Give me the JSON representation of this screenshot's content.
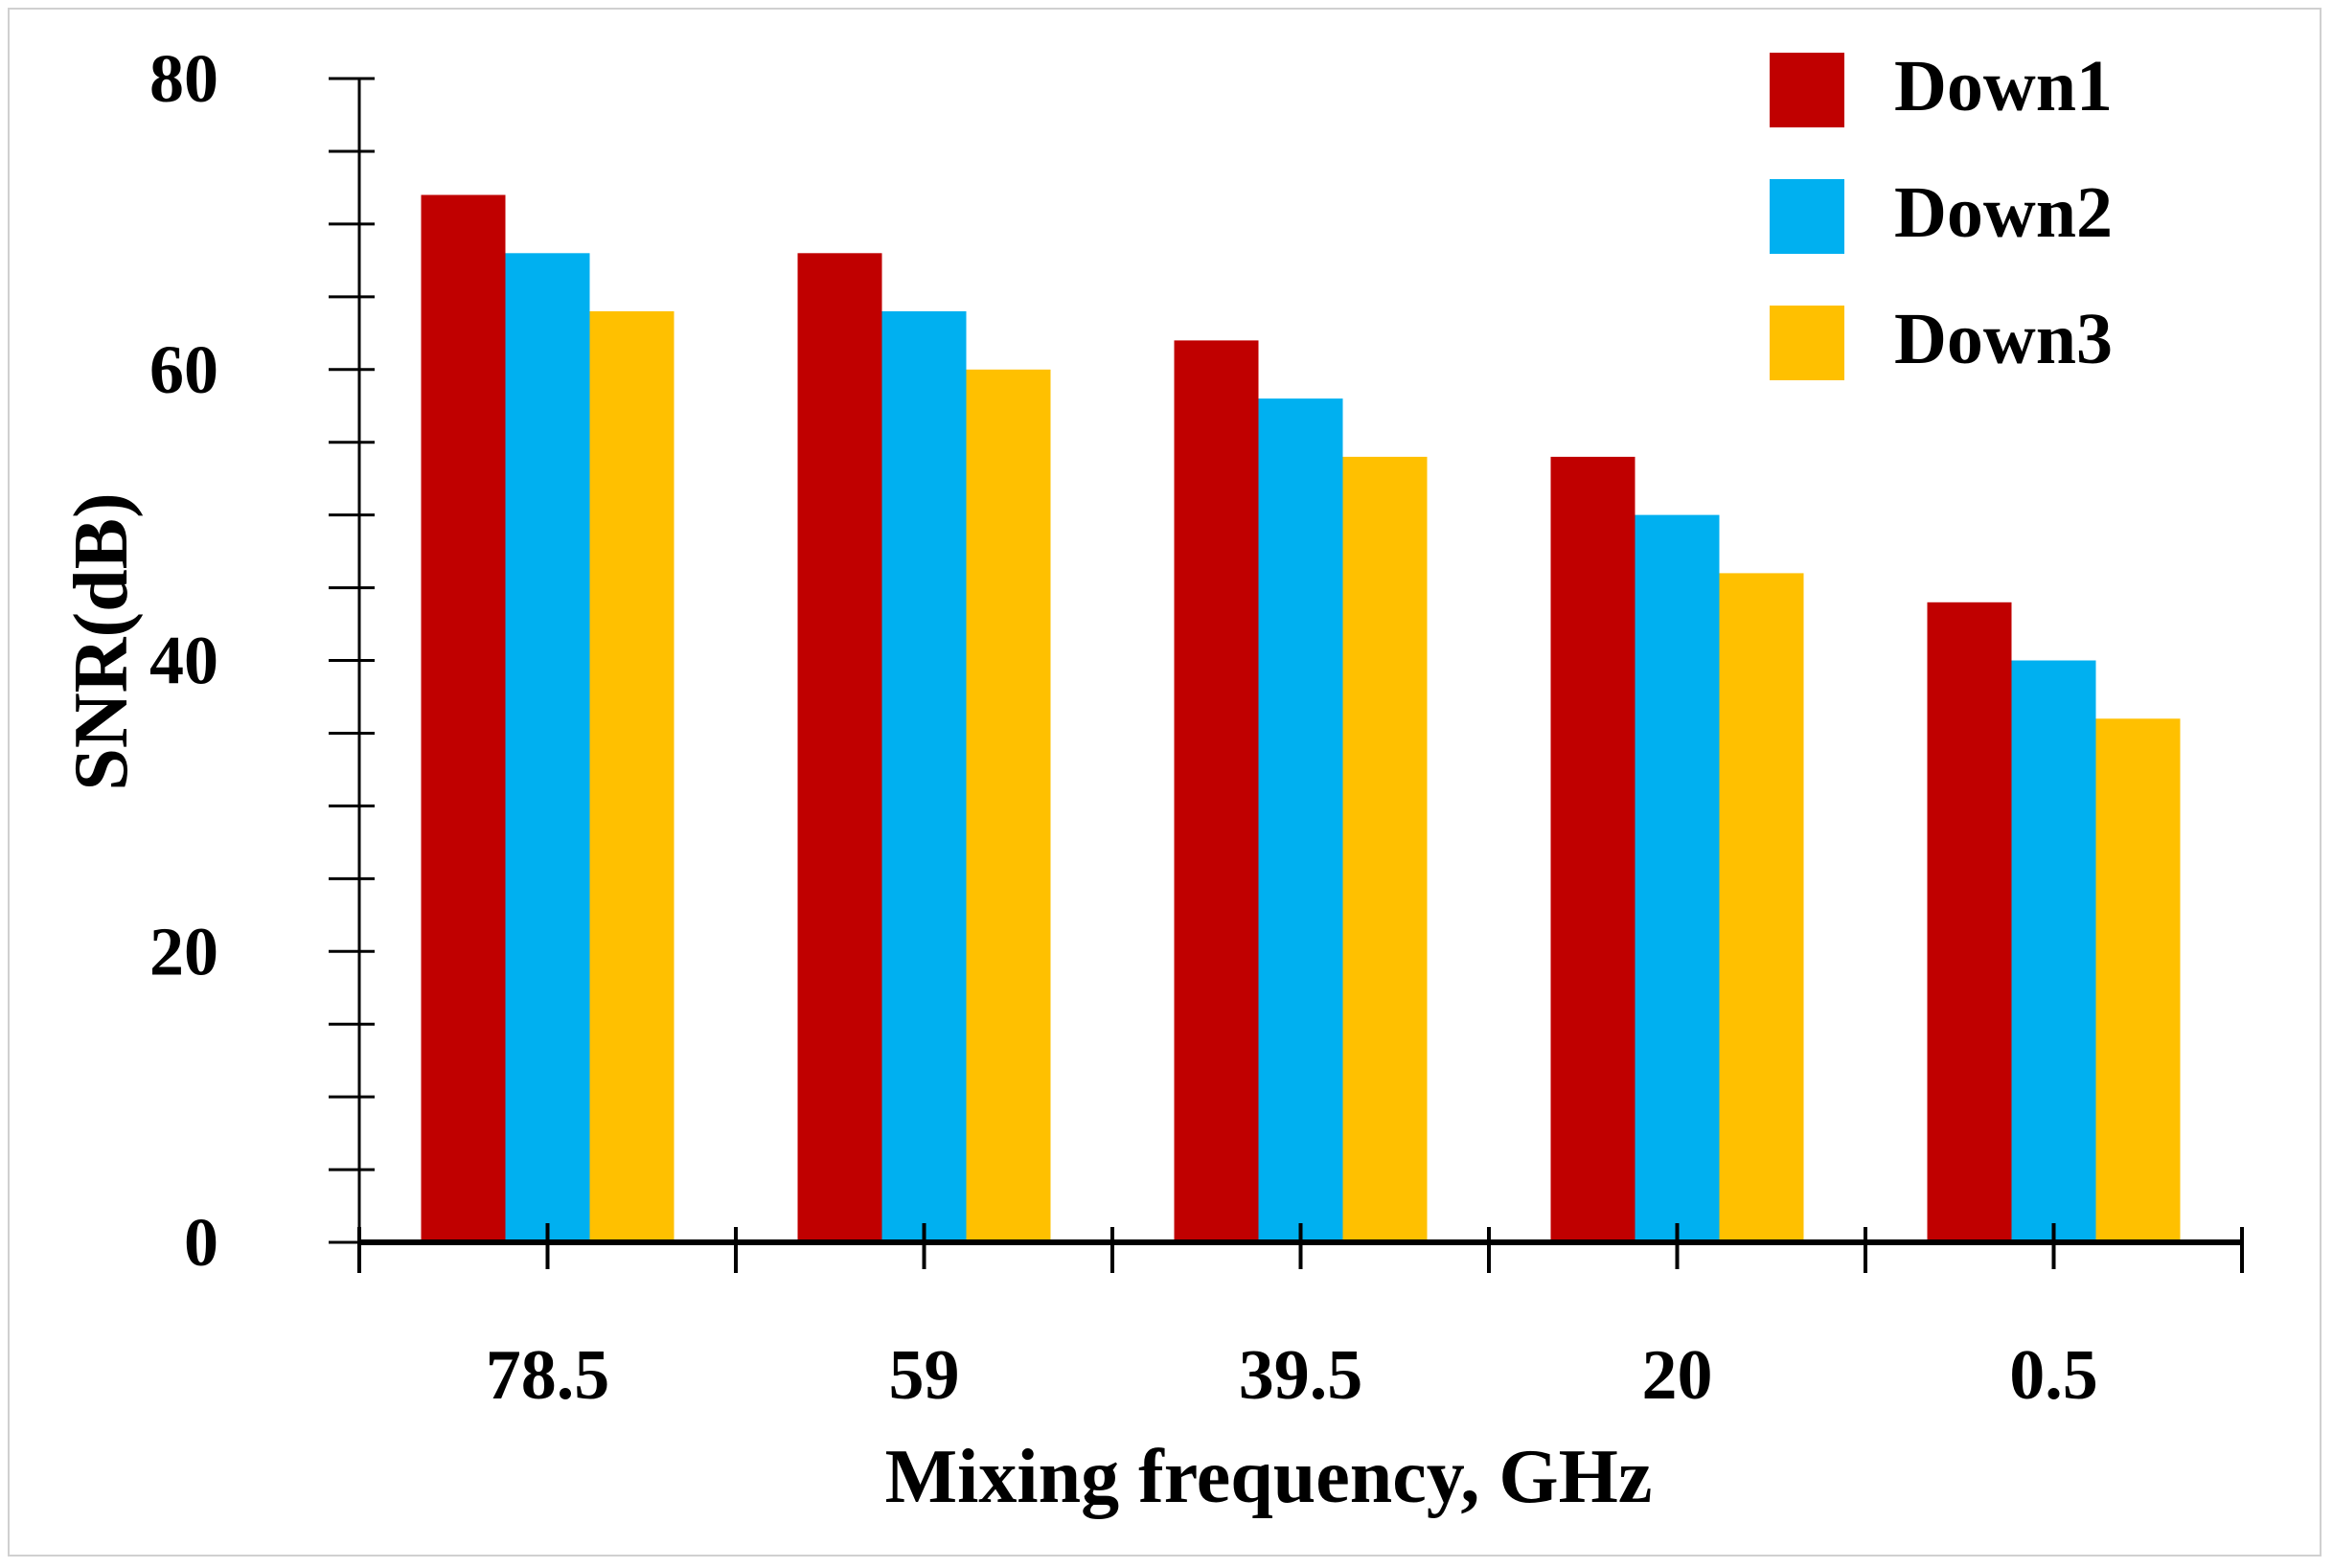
{
  "chart_data": {
    "type": "bar",
    "title": "",
    "xlabel": "Mixing frequency, GHz",
    "ylabel": "SNR(dB)",
    "categories": [
      "78.5",
      "59",
      "39.5",
      "20",
      "0.5"
    ],
    "series": [
      {
        "name": "Down1",
        "color": "#c00000",
        "values": [
          72,
          68,
          62,
          54,
          44
        ]
      },
      {
        "name": "Down2",
        "color": "#00b0f0",
        "values": [
          68,
          64,
          58,
          50,
          40
        ]
      },
      {
        "name": "Down3",
        "color": "#ffc000",
        "values": [
          64,
          60,
          54,
          46,
          36
        ]
      }
    ],
    "ylim": [
      0,
      80
    ],
    "yticks": [
      "0",
      "20",
      "40",
      "60",
      "80"
    ],
    "y_minor_step": 5,
    "grid": false,
    "legend_position": "top-right"
  }
}
